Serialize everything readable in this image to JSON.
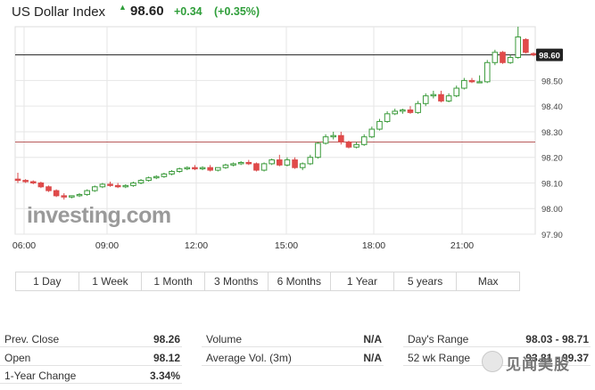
{
  "header": {
    "title": "US Dollar Index",
    "arrow": "▲",
    "price": "98.60",
    "change": "+0.34",
    "change_pct": "(+0.35%)"
  },
  "colors": {
    "up": "#3a9a3a",
    "down": "#d94a4a",
    "up_fill": "#3a9a3a",
    "down_fill": "#e24a4a",
    "last_price_line": "#222222",
    "prev_close_line": "#b85a5a",
    "grid": "#e6e6e6",
    "header_green": "#2f9e3a"
  },
  "chart_data": {
    "type": "candlestick",
    "title": "US Dollar Index",
    "xlabel": "",
    "ylabel": "",
    "x_ticks": [
      "06:00",
      "09:00",
      "12:00",
      "15:00",
      "18:00",
      "21:00"
    ],
    "y_ticks": [
      "97.90",
      "98.00",
      "98.10",
      "98.20",
      "98.30",
      "98.40",
      "98.50"
    ],
    "ylim": [
      97.9,
      98.71
    ],
    "grid": true,
    "last_price": 98.6,
    "last_price_label": "98.60",
    "prev_close": 98.26,
    "watermark": "investing.com",
    "candles": [
      {
        "o": 98.115,
        "h": 98.14,
        "c": 98.11,
        "l": 98.1
      },
      {
        "o": 98.11,
        "h": 98.115,
        "c": 98.105,
        "l": 98.1
      },
      {
        "o": 98.105,
        "h": 98.11,
        "c": 98.1,
        "l": 98.095
      },
      {
        "o": 98.1,
        "h": 98.105,
        "c": 98.085,
        "l": 98.08
      },
      {
        "o": 98.085,
        "h": 98.09,
        "c": 98.07,
        "l": 98.065
      },
      {
        "o": 98.07,
        "h": 98.075,
        "c": 98.05,
        "l": 98.045
      },
      {
        "o": 98.05,
        "h": 98.06,
        "c": 98.045,
        "l": 98.035
      },
      {
        "o": 98.045,
        "h": 98.05,
        "c": 98.05,
        "l": 98.04
      },
      {
        "o": 98.05,
        "h": 98.06,
        "c": 98.055,
        "l": 98.045
      },
      {
        "o": 98.055,
        "h": 98.075,
        "c": 98.07,
        "l": 98.05
      },
      {
        "o": 98.07,
        "h": 98.09,
        "c": 98.085,
        "l": 98.065
      },
      {
        "o": 98.085,
        "h": 98.1,
        "c": 98.095,
        "l": 98.08
      },
      {
        "o": 98.095,
        "h": 98.105,
        "c": 98.09,
        "l": 98.085
      },
      {
        "o": 98.09,
        "h": 98.1,
        "c": 98.085,
        "l": 98.08
      },
      {
        "o": 98.085,
        "h": 98.095,
        "c": 98.09,
        "l": 98.08
      },
      {
        "o": 98.09,
        "h": 98.105,
        "c": 98.1,
        "l": 98.085
      },
      {
        "o": 98.1,
        "h": 98.115,
        "c": 98.11,
        "l": 98.095
      },
      {
        "o": 98.11,
        "h": 98.125,
        "c": 98.12,
        "l": 98.105
      },
      {
        "o": 98.12,
        "h": 98.13,
        "c": 98.125,
        "l": 98.115
      },
      {
        "o": 98.125,
        "h": 98.14,
        "c": 98.135,
        "l": 98.12
      },
      {
        "o": 98.135,
        "h": 98.15,
        "c": 98.145,
        "l": 98.13
      },
      {
        "o": 98.145,
        "h": 98.16,
        "c": 98.155,
        "l": 98.14
      },
      {
        "o": 98.155,
        "h": 98.165,
        "c": 98.16,
        "l": 98.15
      },
      {
        "o": 98.16,
        "h": 98.17,
        "c": 98.155,
        "l": 98.15
      },
      {
        "o": 98.155,
        "h": 98.165,
        "c": 98.16,
        "l": 98.15
      },
      {
        "o": 98.16,
        "h": 98.17,
        "c": 98.15,
        "l": 98.145
      },
      {
        "o": 98.15,
        "h": 98.16,
        "c": 98.16,
        "l": 98.145
      },
      {
        "o": 98.16,
        "h": 98.175,
        "c": 98.17,
        "l": 98.155
      },
      {
        "o": 98.17,
        "h": 98.18,
        "c": 98.175,
        "l": 98.165
      },
      {
        "o": 98.175,
        "h": 98.185,
        "c": 98.18,
        "l": 98.17
      },
      {
        "o": 98.18,
        "h": 98.19,
        "c": 98.175,
        "l": 98.17
      },
      {
        "o": 98.175,
        "h": 98.18,
        "c": 98.15,
        "l": 98.145
      },
      {
        "o": 98.15,
        "h": 98.18,
        "c": 98.175,
        "l": 98.145
      },
      {
        "o": 98.175,
        "h": 98.195,
        "c": 98.19,
        "l": 98.17
      },
      {
        "o": 98.19,
        "h": 98.21,
        "c": 98.17,
        "l": 98.165
      },
      {
        "o": 98.17,
        "h": 98.2,
        "c": 98.19,
        "l": 98.165
      },
      {
        "o": 98.19,
        "h": 98.2,
        "c": 98.16,
        "l": 98.155
      },
      {
        "o": 98.16,
        "h": 98.18,
        "c": 98.175,
        "l": 98.15
      },
      {
        "o": 98.175,
        "h": 98.21,
        "c": 98.2,
        "l": 98.17
      },
      {
        "o": 98.2,
        "h": 98.26,
        "c": 98.255,
        "l": 98.195
      },
      {
        "o": 98.255,
        "h": 98.29,
        "c": 98.28,
        "l": 98.25
      },
      {
        "o": 98.28,
        "h": 98.3,
        "c": 98.285,
        "l": 98.27
      },
      {
        "o": 98.285,
        "h": 98.3,
        "c": 98.26,
        "l": 98.25
      },
      {
        "o": 98.26,
        "h": 98.265,
        "c": 98.24,
        "l": 98.235
      },
      {
        "o": 98.24,
        "h": 98.26,
        "c": 98.25,
        "l": 98.235
      },
      {
        "o": 98.25,
        "h": 98.29,
        "c": 98.28,
        "l": 98.245
      },
      {
        "o": 98.28,
        "h": 98.32,
        "c": 98.31,
        "l": 98.275
      },
      {
        "o": 98.31,
        "h": 98.35,
        "c": 98.34,
        "l": 98.305
      },
      {
        "o": 98.34,
        "h": 98.38,
        "c": 98.37,
        "l": 98.335
      },
      {
        "o": 98.37,
        "h": 98.39,
        "c": 98.38,
        "l": 98.365
      },
      {
        "o": 98.38,
        "h": 98.39,
        "c": 98.385,
        "l": 98.37
      },
      {
        "o": 98.385,
        "h": 98.4,
        "c": 98.375,
        "l": 98.37
      },
      {
        "o": 98.375,
        "h": 98.42,
        "c": 98.41,
        "l": 98.37
      },
      {
        "o": 98.41,
        "h": 98.45,
        "c": 98.44,
        "l": 98.4
      },
      {
        "o": 98.44,
        "h": 98.46,
        "c": 98.445,
        "l": 98.43
      },
      {
        "o": 98.445,
        "h": 98.46,
        "c": 98.42,
        "l": 98.415
      },
      {
        "o": 98.42,
        "h": 98.45,
        "c": 98.44,
        "l": 98.415
      },
      {
        "o": 98.44,
        "h": 98.48,
        "c": 98.47,
        "l": 98.435
      },
      {
        "o": 98.47,
        "h": 98.51,
        "c": 98.5,
        "l": 98.465
      },
      {
        "o": 98.5,
        "h": 98.51,
        "c": 98.495,
        "l": 98.49
      },
      {
        "o": 98.495,
        "h": 98.52,
        "c": 98.495,
        "l": 98.49
      },
      {
        "o": 98.495,
        "h": 98.58,
        "c": 98.57,
        "l": 98.49
      },
      {
        "o": 98.57,
        "h": 98.62,
        "c": 98.61,
        "l": 98.56
      },
      {
        "o": 98.61,
        "h": 98.615,
        "c": 98.57,
        "l": 98.565
      },
      {
        "o": 98.57,
        "h": 98.6,
        "c": 98.59,
        "l": 98.565
      },
      {
        "o": 98.59,
        "h": 98.71,
        "c": 98.67,
        "l": 98.585
      },
      {
        "o": 98.66,
        "h": 98.665,
        "c": 98.61,
        "l": 98.605
      },
      {
        "o": 98.605,
        "h": 98.61,
        "c": 98.6,
        "l": 98.595
      }
    ]
  },
  "ranges": [
    "1 Day",
    "1 Week",
    "1 Month",
    "3 Months",
    "6 Months",
    "1 Year",
    "5 years",
    "Max"
  ],
  "stats": {
    "prev_close": {
      "label": "Prev. Close",
      "value": "98.26"
    },
    "open": {
      "label": "Open",
      "value": "98.12"
    },
    "year_change": {
      "label": "1-Year Change",
      "value": "3.34%"
    },
    "volume": {
      "label": "Volume",
      "value": "N/A"
    },
    "avg_volume": {
      "label": "Average Vol. (3m)",
      "value": "N/A"
    },
    "days_range": {
      "label": "Day's Range",
      "value": "98.03 - 98.71"
    },
    "wk52_range": {
      "label": "52 wk Range",
      "value": "93.81 - 99.37"
    }
  },
  "watermark_text": "见闻美股"
}
